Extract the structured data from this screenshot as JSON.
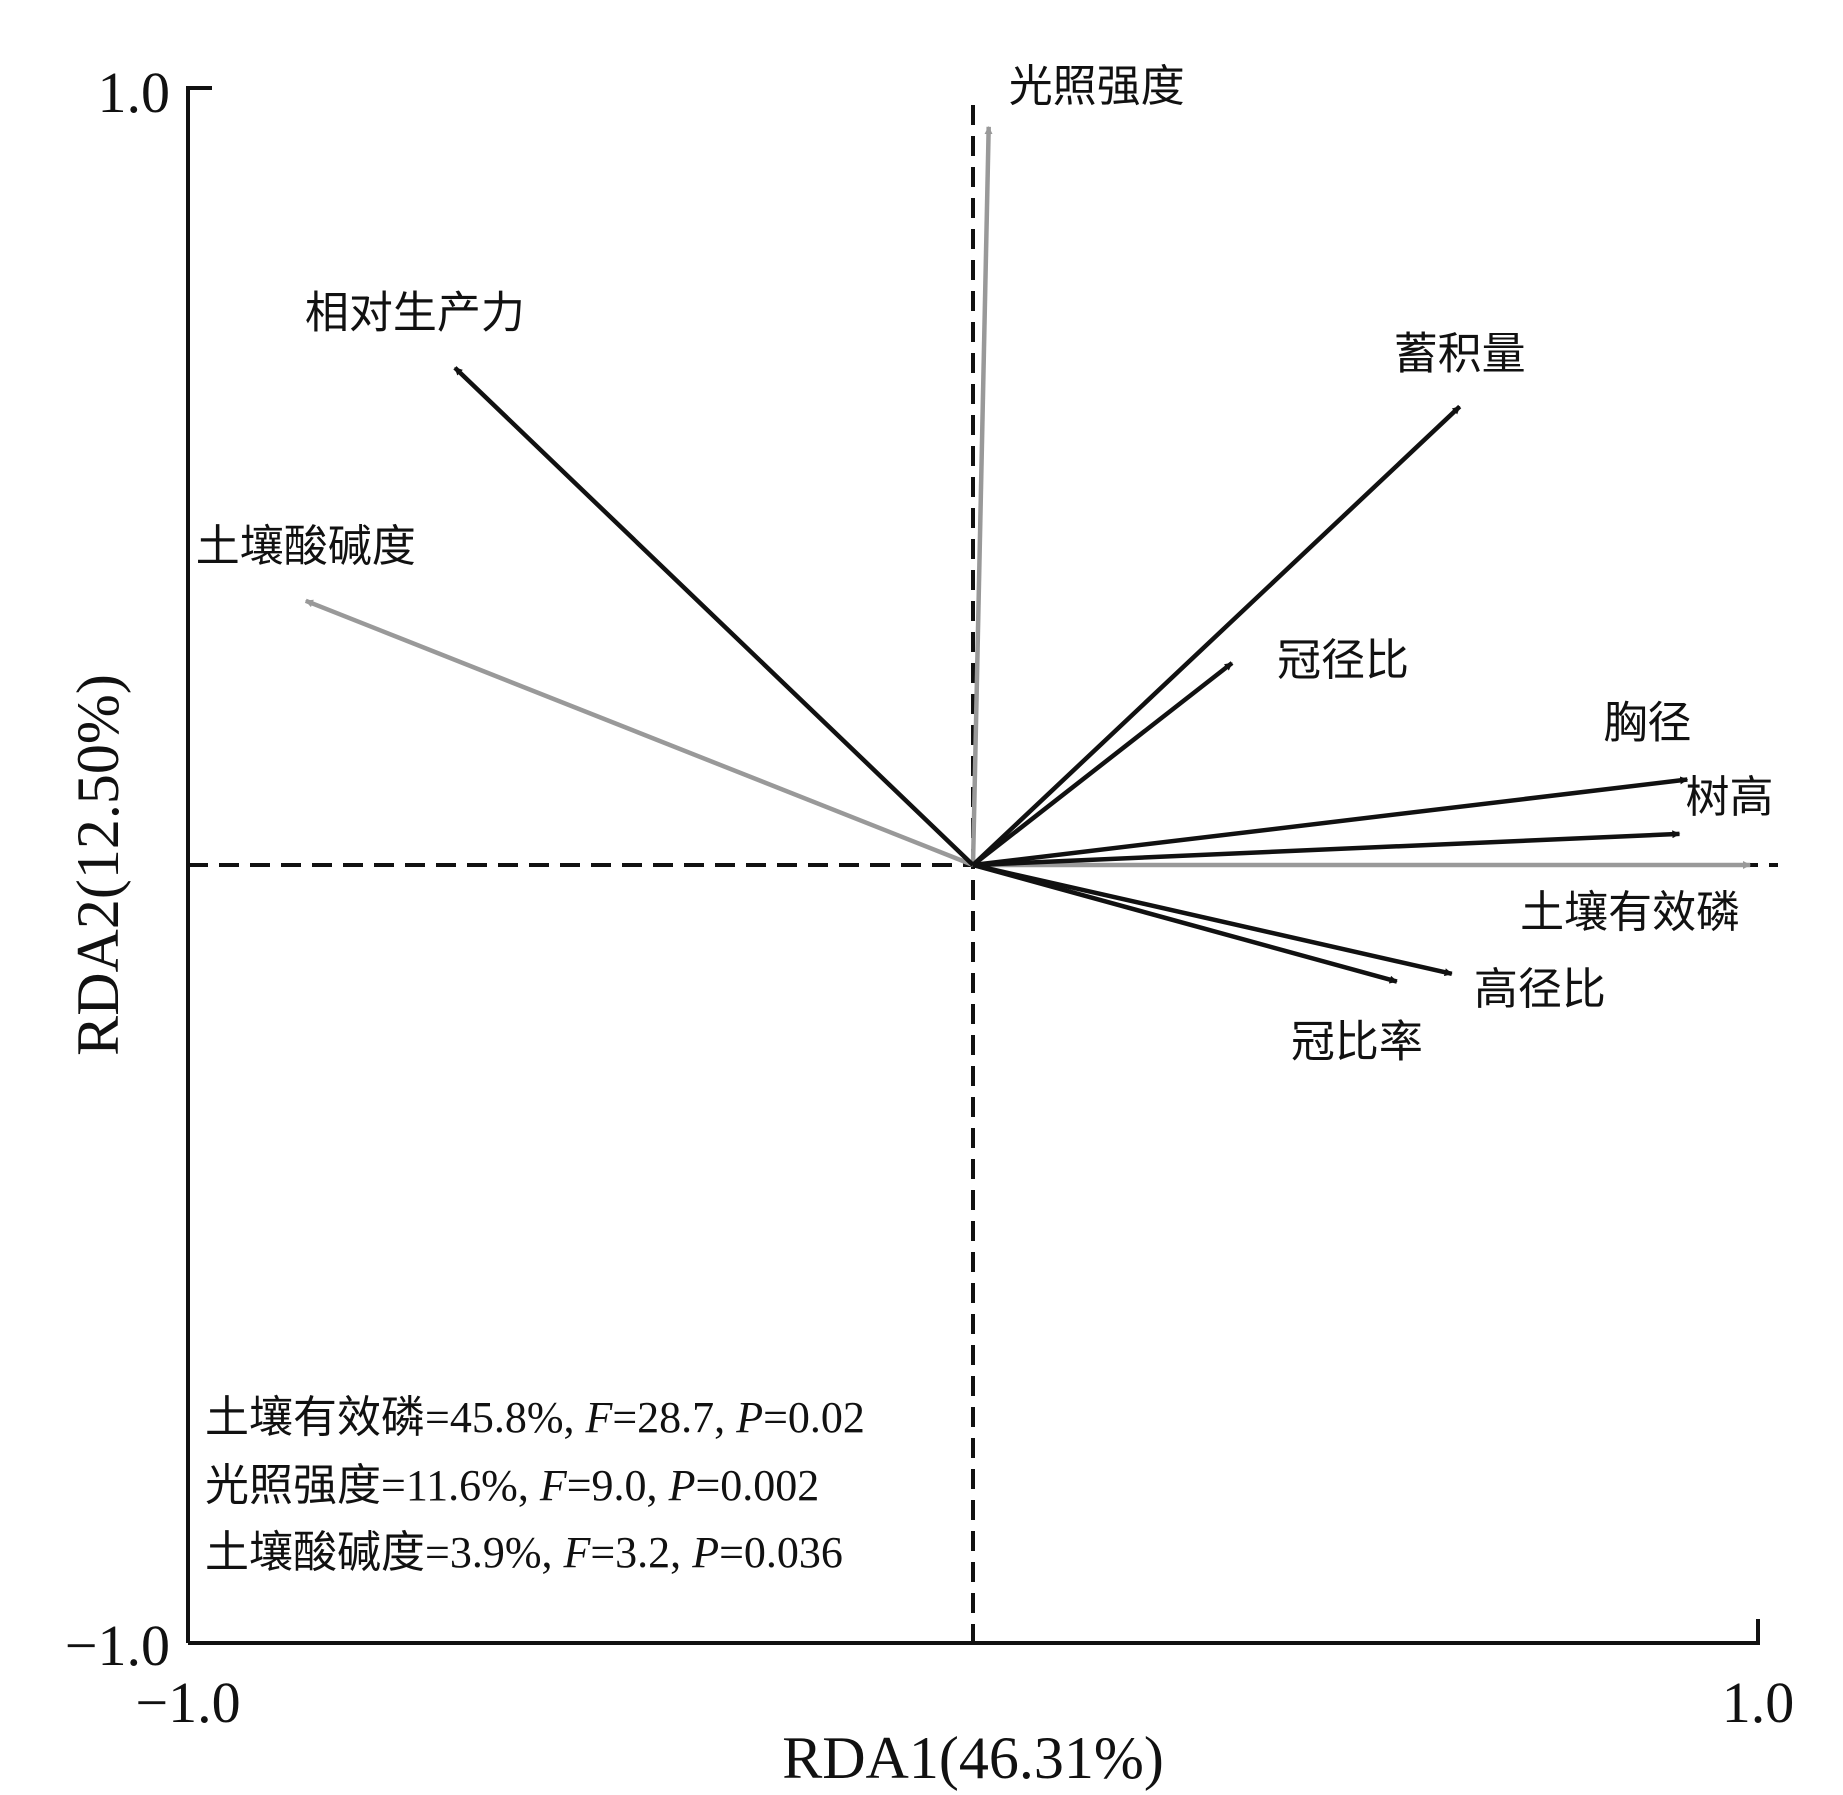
{
  "chart_data": {
    "type": "scatter",
    "subtype": "rda-biplot",
    "xlabel": "RDA1(46.31%)",
    "ylabel": "RDA2(12.50%)",
    "xlim": [
      -1.0,
      1.0
    ],
    "ylim": [
      -1.0,
      1.0
    ],
    "x_ticks": [
      "−1.0",
      "1.0"
    ],
    "y_ticks": [
      "1.0",
      "−1.0"
    ],
    "zero_lines": "dashed",
    "colors": {
      "response": "#111111",
      "explanatory": "#999999"
    },
    "series": [
      {
        "group": "response",
        "vectors": [
          {
            "label": "相对生产力",
            "x": -0.66,
            "y": 0.64
          },
          {
            "label": "蓄积量",
            "x": 0.62,
            "y": 0.59
          },
          {
            "label": "冠径比",
            "x": 0.33,
            "y": 0.26
          },
          {
            "label": "胸径",
            "x": 0.91,
            "y": 0.11
          },
          {
            "label": "树高",
            "x": 0.9,
            "y": 0.04
          },
          {
            "label": "高径比",
            "x": 0.61,
            "y": -0.14
          },
          {
            "label": "冠比率",
            "x": 0.54,
            "y": -0.15
          }
        ]
      },
      {
        "group": "explanatory",
        "vectors": [
          {
            "label": "光照强度",
            "x": 0.02,
            "y": 0.95
          },
          {
            "label": "土壤酸碱度",
            "x": -0.85,
            "y": 0.34
          },
          {
            "label": "土壤有效磷",
            "x": 0.99,
            "y": 0.0
          }
        ]
      }
    ],
    "annotations": [
      {
        "prefix": "土壤有效磷=45.8%, ",
        "f_label": "F",
        "f_value": "=28.7, ",
        "p_label": "P",
        "p_value": "=0.02"
      },
      {
        "prefix": "光照强度=11.6%, ",
        "f_label": "F",
        "f_value": "=9.0, ",
        "p_label": "P",
        "p_value": "=0.002"
      },
      {
        "prefix": "土壤酸碱度=3.9%, ",
        "f_label": "F",
        "f_value": "=3.2, ",
        "p_label": "P",
        "p_value": "=0.036"
      }
    ]
  }
}
